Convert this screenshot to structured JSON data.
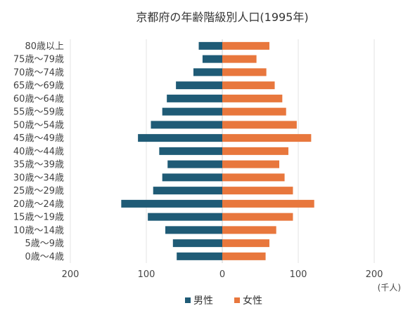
{
  "chart_data": {
    "type": "bar",
    "orientation": "horizontal-population-pyramid",
    "title": "京都府の年齢階級別人口(1995年)",
    "unit_label": "(千人)",
    "categories": [
      "80歳以上",
      "75歳～79歳",
      "70歳～74歳",
      "65歳～69歳",
      "60歳～64歳",
      "55歳～59歳",
      "50歳～54歳",
      "45歳～49歳",
      "40歳～44歳",
      "35歳～39歳",
      "30歳～34歳",
      "25歳～29歳",
      "20歳～24歳",
      "15歳～19歳",
      "10歳～14歳",
      "5歳～9歳",
      "0歳～4歳"
    ],
    "series": [
      {
        "name": "男性",
        "color": "#1f5b76",
        "direction": "left",
        "values": [
          31,
          26,
          38,
          61,
          73,
          79,
          94,
          111,
          83,
          72,
          79,
          91,
          133,
          98,
          75,
          65,
          60
        ]
      },
      {
        "name": "女性",
        "color": "#e8773d",
        "direction": "right",
        "values": [
          62,
          45,
          58,
          69,
          79,
          84,
          98,
          117,
          87,
          75,
          82,
          93,
          121,
          93,
          71,
          62,
          57
        ]
      }
    ],
    "x_ticks": [
      "200",
      "100",
      "0",
      "100",
      "200"
    ],
    "xlim": [
      -200,
      200
    ],
    "grid": true,
    "legend_position": "bottom"
  }
}
